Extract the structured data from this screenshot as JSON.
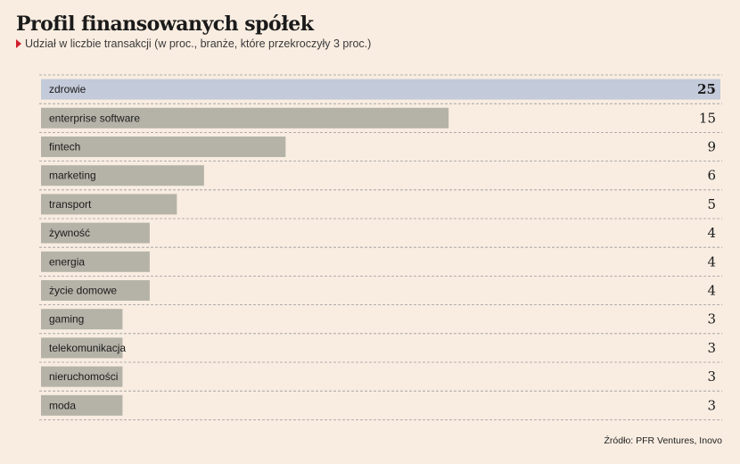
{
  "title": "Profil finansowanych spółek",
  "subtitle": "Udział w liczbie transakcji (w proc., branże, które przekroczyły 3 proc.)",
  "source": "Źródło: PFR Ventures, Inovo",
  "colors": {
    "bar": "#b5b3a8",
    "highlight": "#c3cad9",
    "marker": "#d0202e",
    "background": "#f9ede1"
  },
  "chart_data": {
    "type": "bar",
    "orientation": "horizontal",
    "categories": [
      "zdrowie",
      "enterprise software",
      "fintech",
      "marketing",
      "transport",
      "żywność",
      "energia",
      "życie domowe",
      "gaming",
      "telekomunikacja",
      "nieruchomości",
      "moda"
    ],
    "values": [
      25,
      15,
      9,
      6,
      5,
      4,
      4,
      4,
      3,
      3,
      3,
      3
    ],
    "highlighted": "zdrowie",
    "xlim": [
      0,
      25
    ],
    "grid": true
  }
}
